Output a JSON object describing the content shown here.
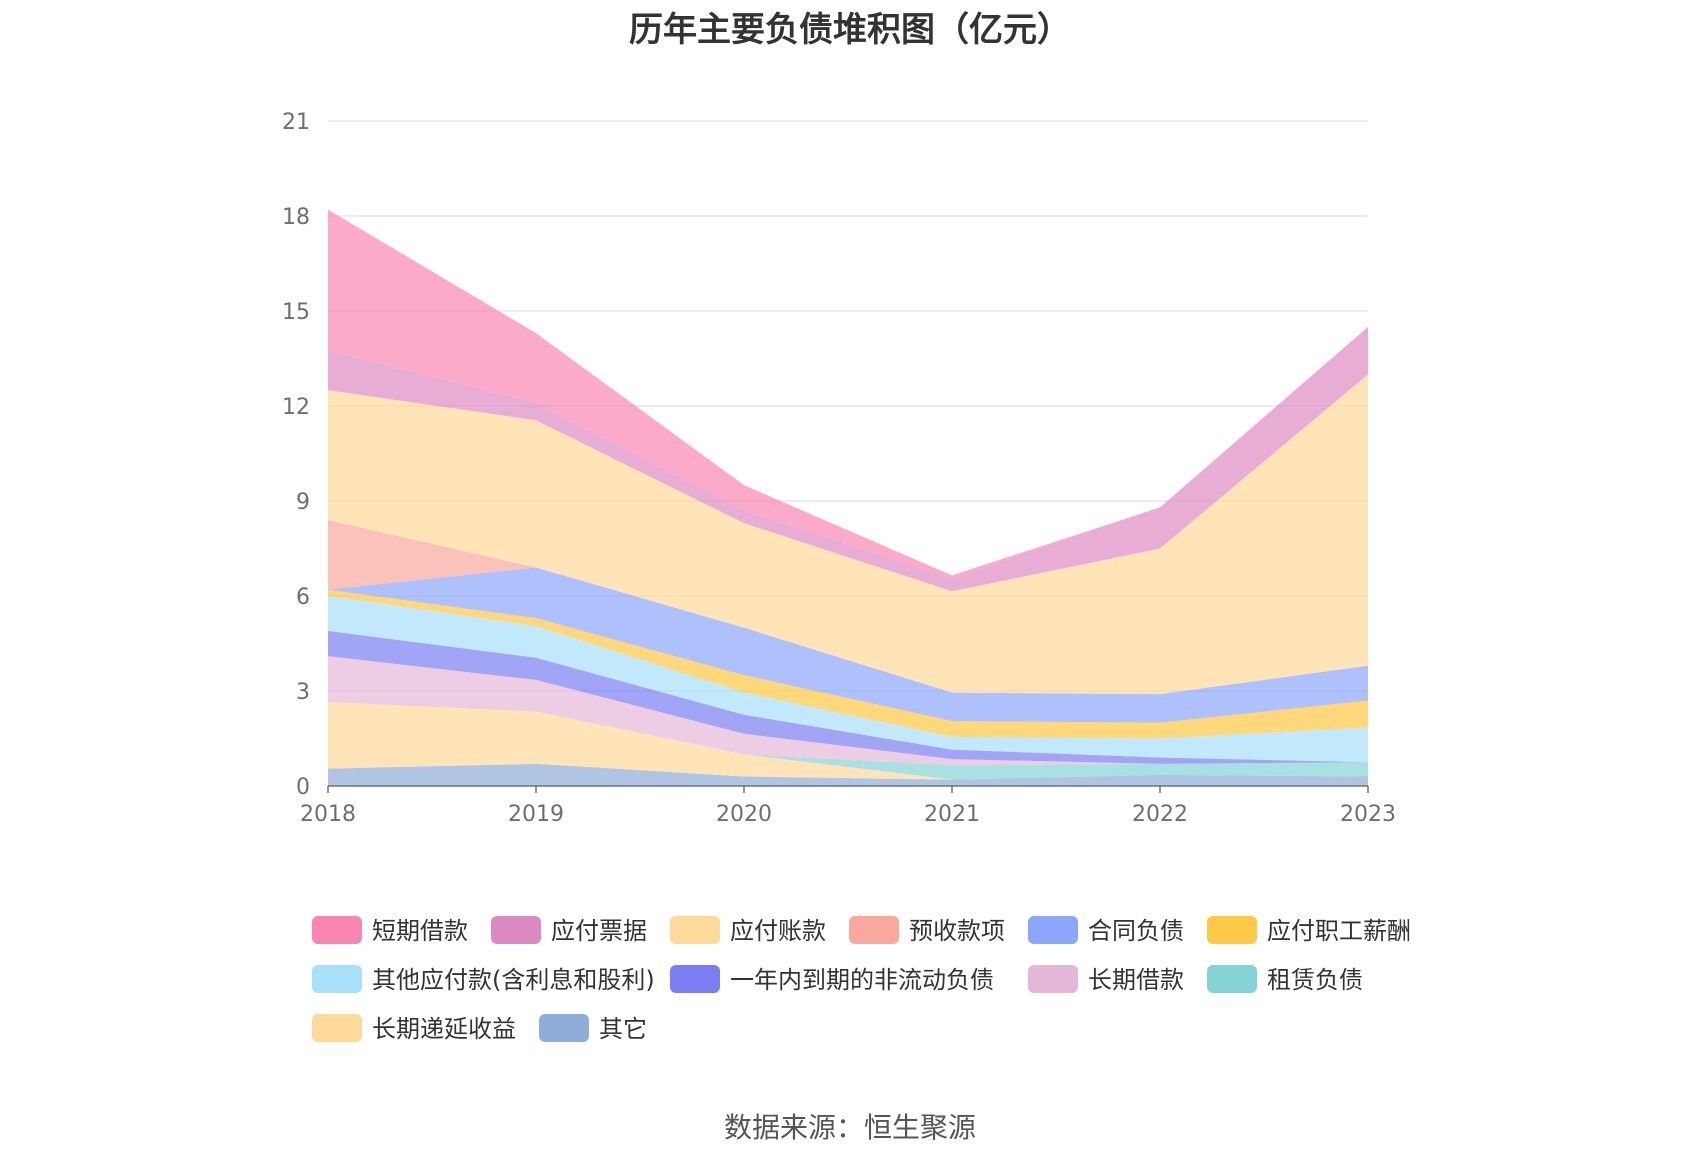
{
  "title": "历年主要负债堆积图（亿元）",
  "source": "数据来源：恒生聚源",
  "chart_data": {
    "type": "area",
    "stacked": true,
    "title": "历年主要负债堆积图（亿元）",
    "categories": [
      "2018",
      "2019",
      "2020",
      "2021",
      "2022",
      "2023"
    ],
    "ylim": [
      0,
      21
    ],
    "y_ticks": [
      "0",
      "3",
      "6",
      "9",
      "12",
      "15",
      "18",
      "21"
    ],
    "grid": true,
    "legend_position": "bottom",
    "series": [
      {
        "name": "其它",
        "color": "#8eadd9",
        "values": [
          0.55,
          0.7,
          0.3,
          0.2,
          0.35,
          0.3
        ]
      },
      {
        "name": "长期递延收益",
        "color": "#ffd99a",
        "values": [
          2.1,
          1.65,
          0.7,
          0.0,
          0.0,
          0.0
        ]
      },
      {
        "name": "租赁负债",
        "color": "#84d4d6",
        "values": [
          0.0,
          0.0,
          0.0,
          0.45,
          0.35,
          0.45
        ]
      },
      {
        "name": "长期借款",
        "color": "#e6b8d8",
        "values": [
          1.45,
          1.0,
          0.65,
          0.2,
          0.0,
          0.0
        ]
      },
      {
        "name": "一年内到期的非流动负债",
        "color": "#7b7ef2",
        "values": [
          0.8,
          0.7,
          0.6,
          0.3,
          0.2,
          0.0
        ]
      },
      {
        "name": "其他应付款(含利息和股利)",
        "color": "#a8e0fa",
        "values": [
          1.1,
          1.0,
          0.7,
          0.4,
          0.6,
          1.1
        ]
      },
      {
        "name": "应付职工薪酬",
        "color": "#ffc845",
        "values": [
          0.2,
          0.25,
          0.55,
          0.5,
          0.5,
          0.85
        ]
      },
      {
        "name": "合同负债",
        "color": "#8ca6fb",
        "values": [
          0.0,
          1.6,
          1.5,
          0.9,
          0.9,
          1.1
        ]
      },
      {
        "name": "预收款项",
        "color": "#f8a89d",
        "values": [
          2.2,
          0.0,
          0.0,
          0.0,
          0.0,
          0.0
        ]
      },
      {
        "name": "应付账款",
        "color": "#ffd99a",
        "values": [
          4.1,
          4.65,
          3.3,
          3.2,
          4.6,
          9.2
        ]
      },
      {
        "name": "应付票据",
        "color": "#dd8ac2",
        "values": [
          1.25,
          0.55,
          0.4,
          0.4,
          1.3,
          1.5
        ]
      },
      {
        "name": "短期借款",
        "color": "#f986b2",
        "values": [
          4.45,
          2.2,
          0.8,
          0.1,
          0.0,
          0.0
        ]
      }
    ],
    "legend_order": [
      "短期借款",
      "应付票据",
      "应付账款",
      "预收款项",
      "合同负债",
      "应付职工薪酬",
      "其他应付款(含利息和股利)",
      "一年内到期的非流动负债",
      "长期借款",
      "租赁负债",
      "长期递延收益",
      "其它"
    ]
  }
}
